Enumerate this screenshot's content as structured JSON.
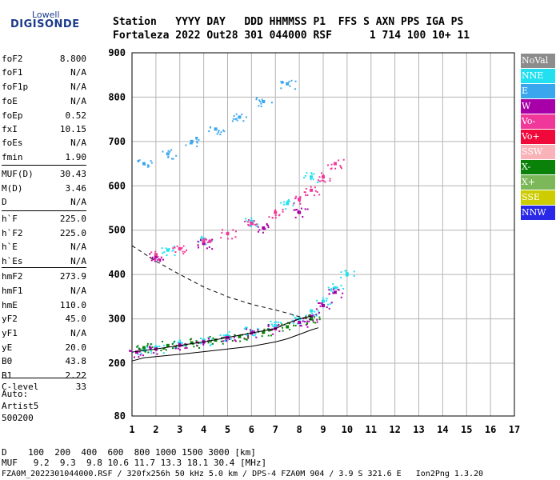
{
  "logo": {
    "line1": "Lowell",
    "line2": "DIGISONDE"
  },
  "header": {
    "line1": "Station   YYYY DAY   DDD HHMMSS P1  FFS S AXN PPS IGA PS",
    "line2": "Fortaleza 2022 Out28 301 044000 RSF      1 714 100 10+ 11"
  },
  "params": [
    {
      "name": "foF2",
      "value": "8.800"
    },
    {
      "name": "foF1",
      "value": "N/A"
    },
    {
      "name": "foF1p",
      "value": "N/A"
    },
    {
      "name": "foE",
      "value": "N/A"
    },
    {
      "name": "foEp",
      "value": "0.52"
    },
    {
      "name": "fxI",
      "value": "10.15"
    },
    {
      "name": "foEs",
      "value": "N/A"
    },
    {
      "name": "fmin",
      "value": "1.90"
    },
    {
      "name": "MUF(D)",
      "value": "30.43"
    },
    {
      "name": "M(D)",
      "value": "3.46"
    },
    {
      "name": "D",
      "value": "N/A"
    },
    {
      "name": "h`F",
      "value": "225.0"
    },
    {
      "name": "h`F2",
      "value": "225.0"
    },
    {
      "name": "h`E",
      "value": "N/A"
    },
    {
      "name": "h`Es",
      "value": "N/A"
    },
    {
      "name": "hmF2",
      "value": "273.9"
    },
    {
      "name": "hmF1",
      "value": "N/A"
    },
    {
      "name": "hmE",
      "value": "110.0"
    },
    {
      "name": "yF2",
      "value": "45.0"
    },
    {
      "name": "yF1",
      "value": "N/A"
    },
    {
      "name": "yE",
      "value": "20.0"
    },
    {
      "name": "B0",
      "value": "43.8"
    },
    {
      "name": "B1",
      "value": "2.22"
    },
    {
      "name": "C-level",
      "value": "33"
    }
  ],
  "auto": {
    "line1": "Auto:",
    "line2": "Artist5",
    "line3": "500200"
  },
  "legend": [
    {
      "label": "NoVal",
      "color": "#8c8c8c"
    },
    {
      "label": "NNE",
      "color": "#22e0f0"
    },
    {
      "label": "E",
      "color": "#3aa6ee"
    },
    {
      "label": "W",
      "color": "#a800a8"
    },
    {
      "label": "Vo-",
      "color": "#f0389a"
    },
    {
      "label": "Vo+",
      "color": "#f00a3c"
    },
    {
      "label": "SSW",
      "color": "#f8b2b8"
    },
    {
      "label": "X-",
      "color": "#0a820a"
    },
    {
      "label": "X+",
      "color": "#7cb85a"
    },
    {
      "label": "SSE",
      "color": "#cccc00"
    },
    {
      "label": "NNW",
      "color": "#2828e6"
    }
  ],
  "bottom": {
    "d_row": "D    100  200  400  600  800 1000 1500 3000 [km]",
    "muf_row": "MUF   9.2  9.3  9.8 10.6 11.7 13.3 18.1 30.4 [MHz]",
    "footer": "FZA0M_2022301044000.RSF / 320fx256h 50 kHz 5.0 km / DPS-4 FZA0M 904 / 3.9 S 321.6 E   Ion2Png 1.3.20"
  },
  "chart_data": {
    "type": "scatter",
    "x_ticks": [
      "1",
      "2",
      "3",
      "4",
      "5",
      "6",
      "7",
      "8",
      "9",
      "10",
      "11",
      "12",
      "13",
      "14",
      "15",
      "16",
      "17"
    ],
    "y_ticks": [
      "80",
      "200",
      "300",
      "400",
      "500",
      "600",
      "700",
      "800",
      "900"
    ],
    "xlim": [
      1,
      17
    ],
    "ylim": [
      80,
      900
    ],
    "grid": true,
    "series": [
      {
        "name": "NNE",
        "color": "#22e0f0",
        "trace_id": "o-mode-echo",
        "x": [
          1.5,
          2.0,
          3.0,
          4.0,
          5.0,
          6.0,
          7.0,
          8.0,
          8.5,
          9.0,
          9.5,
          10.0,
          2.5,
          4.0,
          6.0,
          7.5,
          8.5
        ],
        "y": [
          230,
          235,
          245,
          252,
          262,
          272,
          285,
          300,
          318,
          340,
          370,
          400,
          455,
          480,
          520,
          560,
          620
        ]
      },
      {
        "name": "W",
        "color": "#a800a8",
        "trace_id": "x-mode-echo",
        "x": [
          1.2,
          2.0,
          3.0,
          4.0,
          5.0,
          6.0,
          7.0,
          8.0,
          8.5,
          9.0,
          9.5,
          2.0,
          4.0,
          6.5,
          8.0
        ],
        "y": [
          225,
          232,
          240,
          248,
          258,
          268,
          278,
          292,
          305,
          330,
          360,
          440,
          470,
          505,
          540
        ]
      },
      {
        "name": "Vo-",
        "color": "#f0389a",
        "trace_id": "o-mode-second-hop",
        "x": [
          2.0,
          3.0,
          4.0,
          5.0,
          6.0,
          7.0,
          8.0,
          8.5,
          9.0,
          9.5
        ],
        "y": [
          445,
          458,
          475,
          492,
          515,
          540,
          570,
          590,
          620,
          650
        ]
      },
      {
        "name": "X-",
        "color": "#0a820a",
        "trace_id": "x-mode-second-hop",
        "x": [
          1.5,
          2.5,
          3.5,
          4.5,
          5.5,
          6.5,
          7.5,
          8.5
        ],
        "y": [
          235,
          240,
          246,
          252,
          260,
          270,
          282,
          300
        ]
      },
      {
        "name": "E",
        "color": "#3aa6ee",
        "trace_id": "third-hop",
        "x": [
          1.5,
          2.5,
          3.5,
          4.5,
          5.5,
          6.5,
          7.5
        ],
        "y": [
          650,
          672,
          700,
          728,
          755,
          790,
          830
        ]
      }
    ],
    "profile_curves": [
      {
        "style": "dashed",
        "x": [
          1.0,
          2.0,
          3.0,
          4.0,
          5.0,
          6.0,
          7.0,
          7.5,
          8.0,
          8.5
        ],
        "y": [
          465,
          430,
          400,
          372,
          350,
          333,
          320,
          313,
          305,
          298
        ]
      },
      {
        "style": "solid",
        "x": [
          1.0,
          1.5,
          2.0,
          3.0,
          4.0,
          5.0,
          6.0,
          7.0,
          7.5,
          8.0,
          8.5,
          8.8
        ],
        "y": [
          205,
          212,
          215,
          220,
          226,
          232,
          238,
          248,
          255,
          265,
          275,
          280
        ]
      },
      {
        "style": "solid",
        "x": [
          1.0,
          2.0,
          3.0,
          4.0,
          5.0,
          6.0,
          7.0,
          7.5,
          8.0,
          8.5
        ],
        "y": [
          225,
          232,
          240,
          248,
          258,
          268,
          278,
          290,
          300,
          306
        ]
      }
    ]
  }
}
